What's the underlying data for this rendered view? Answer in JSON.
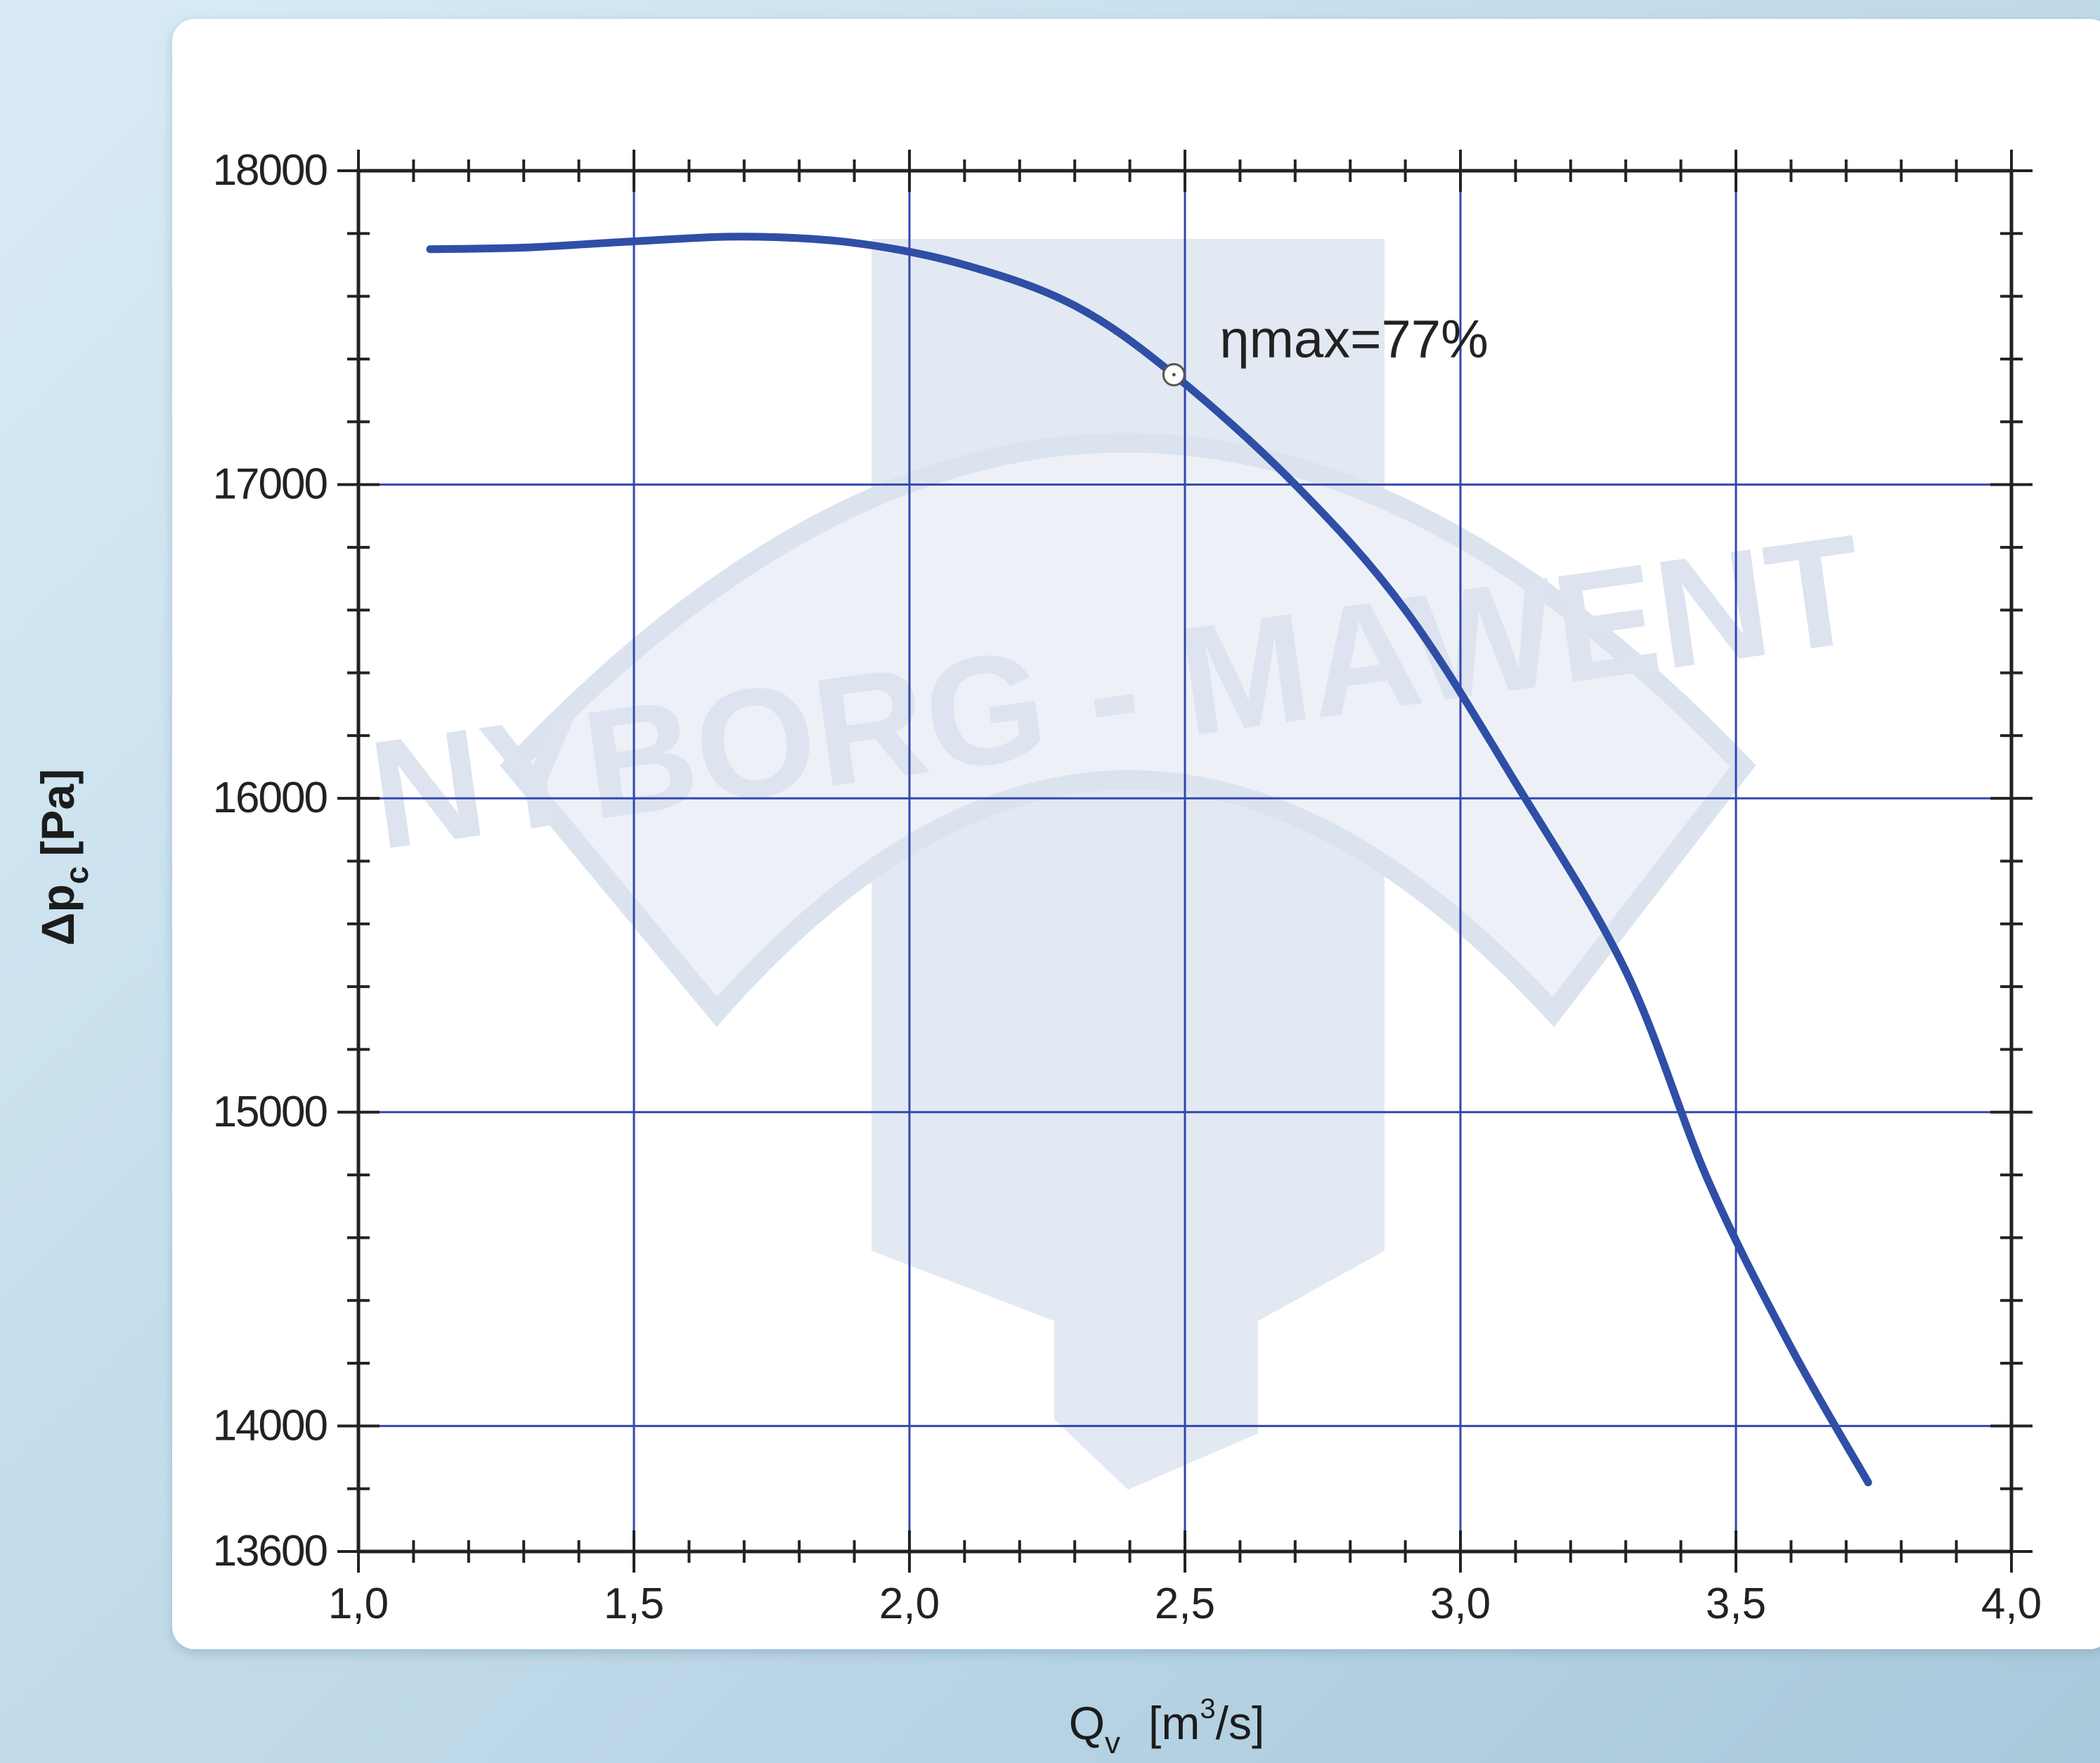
{
  "colors": {
    "curve": "#2f4ea6",
    "grid": "#3346b0",
    "axis": "#222222",
    "watermark": "#dfe6f1",
    "panel": "#ffffff"
  },
  "watermark": {
    "text": "NYBORG - MAWENT"
  },
  "chart_data": {
    "type": "line",
    "xlabel": "Q",
    "xlabel_sub": "v",
    "xlabel_unit_pre": "[m",
    "xlabel_unit_sup": "3",
    "xlabel_unit_post": "/s]",
    "ylabel": "Δp",
    "ylabel_sub": "c",
    "ylabel_unit": "[Pa]",
    "xlim": [
      1.0,
      4.0
    ],
    "ylim": [
      13600,
      18000
    ],
    "grid": true,
    "x_ticks": [
      1.0,
      1.5,
      2.0,
      2.5,
      3.0,
      3.5,
      4.0
    ],
    "x_tick_labels": [
      "1,0",
      "1,5",
      "2,0",
      "2,5",
      "3,0",
      "3,5",
      "4,0"
    ],
    "y_ticks": [
      13600,
      14000,
      15000,
      16000,
      17000,
      18000
    ],
    "y_tick_labels": [
      "13600",
      "14000",
      "15000",
      "16000",
      "17000",
      "18000"
    ],
    "y_gridlines": [
      14000,
      15000,
      16000,
      17000
    ],
    "series": [
      {
        "points": [
          [
            1.13,
            17750
          ],
          [
            1.3,
            17755
          ],
          [
            1.5,
            17775
          ],
          [
            1.7,
            17790
          ],
          [
            1.9,
            17770
          ],
          [
            2.1,
            17700
          ],
          [
            2.3,
            17570
          ],
          [
            2.48,
            17350
          ],
          [
            2.7,
            17000
          ],
          [
            2.9,
            16600
          ],
          [
            3.1,
            16050
          ],
          [
            3.3,
            15450
          ],
          [
            3.45,
            14780
          ],
          [
            3.6,
            14250
          ],
          [
            3.74,
            13820
          ]
        ]
      }
    ],
    "annotations": [
      {
        "text": "ηmax=77%",
        "x": 2.48,
        "y": 17350
      }
    ]
  }
}
